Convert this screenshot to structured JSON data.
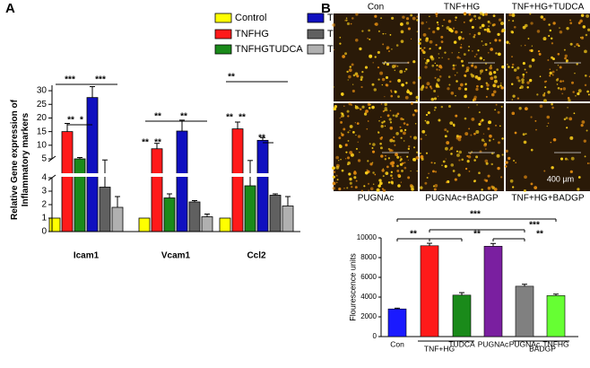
{
  "panel_labels": [
    "A",
    "B"
  ],
  "micrographs": {
    "top_labels": [
      "Con",
      "TNF+HG",
      "TNF+HG+TUDCA"
    ],
    "bottom_labels": [
      "PUGNAc",
      "PUGNAc+BADGP",
      "TNF+HG+BADGP"
    ],
    "scale_label": "400 µm"
  },
  "chart_data": [
    {
      "type": "bar",
      "y_label": "Relative Gene expression of Inflammatory markers",
      "categories": [
        "Icam1",
        "Vcam1",
        "Ccl2"
      ],
      "series": [
        {
          "name": "Control",
          "color": "#ffff00",
          "values": [
            1,
            1,
            1
          ],
          "errors": [
            0,
            0,
            0
          ]
        },
        {
          "name": "TNFHG",
          "color": "#ff1a1a",
          "values": [
            15,
            8.7,
            16
          ],
          "errors": [
            3,
            2,
            2.5
          ]
        },
        {
          "name": "TNFHGTUDCA",
          "color": "#1a8a1a",
          "values": [
            5,
            2.5,
            3.4
          ],
          "errors": [
            0.5,
            0.3,
            1
          ]
        },
        {
          "name": "Tun",
          "color": "#1010c0",
          "values": [
            27.5,
            15.2,
            11.8
          ],
          "errors": [
            4,
            4,
            1
          ]
        },
        {
          "name": "Tun+TUDCA",
          "color": "#606060",
          "values": [
            3.3,
            2.2,
            2.7
          ],
          "errors": [
            1.3,
            0.1,
            0.1
          ]
        },
        {
          "name": "TUDCA",
          "color": "#b0b0b0",
          "values": [
            1.8,
            1.1,
            1.9
          ],
          "errors": [
            0.8,
            0.2,
            0.7
          ]
        }
      ],
      "ylim": [
        0,
        32
      ],
      "y_break": [
        4,
        5
      ],
      "yticks": [
        0,
        1,
        2,
        3,
        4,
        5,
        10,
        15,
        20,
        25,
        30
      ],
      "annotations": [
        "***",
        "***",
        "**",
        "*",
        "**",
        "**",
        "**",
        "**",
        "**",
        "**",
        "**",
        "**"
      ]
    },
    {
      "type": "bar",
      "y_label": "Flourescence units",
      "categories": [
        "Con",
        null,
        "TUDCA",
        "PUGNAc",
        "PUGNAc",
        "TNFHG"
      ],
      "values": [
        2800,
        9200,
        4200,
        9150,
        5100,
        4150
      ],
      "errors": [
        80,
        250,
        250,
        280,
        200,
        150
      ],
      "colors": [
        "#1a1aff",
        "#ff1a1a",
        "#1a8a1a",
        "#7a1fa0",
        "#808080",
        "#66ff33"
      ],
      "group_labels": [
        "TNF+HG",
        "BADGP"
      ],
      "ylim": [
        0,
        10000
      ],
      "yticks": [
        0,
        2000,
        4000,
        6000,
        8000,
        10000
      ],
      "annotations": [
        "***",
        "***",
        "**",
        "**",
        "**"
      ]
    }
  ]
}
